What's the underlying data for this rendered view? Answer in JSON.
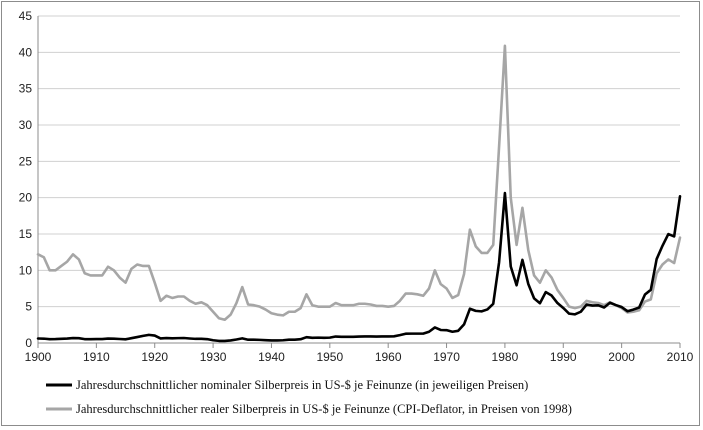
{
  "chart_data": {
    "type": "line",
    "title": "",
    "xlabel": "",
    "ylabel": "",
    "xlim": [
      1900,
      2010
    ],
    "ylim": [
      0,
      45
    ],
    "x_ticks": [
      1900,
      1910,
      1920,
      1930,
      1940,
      1950,
      1960,
      1970,
      1980,
      1990,
      2000,
      2010
    ],
    "y_ticks": [
      0,
      5,
      10,
      15,
      20,
      25,
      30,
      35,
      40,
      45
    ],
    "x_tick_labels": [
      "1900",
      "1910",
      "1920",
      "1930",
      "1940",
      "1950",
      "1960",
      "1970",
      "1980",
      "1990",
      "2000",
      "2010"
    ],
    "y_tick_labels": [
      "0",
      "5",
      "10",
      "15",
      "20",
      "25",
      "30",
      "35",
      "40",
      "45"
    ],
    "grid": "horizontal",
    "legend_position": "bottom",
    "series": [
      {
        "name": "Jahresdurchschnittlicher nominaler Silberpreis in US-$ je Feinunze (in jeweiligen Preisen)",
        "color": "#000000",
        "x": [
          1900,
          1901,
          1902,
          1903,
          1904,
          1905,
          1906,
          1907,
          1908,
          1909,
          1910,
          1911,
          1912,
          1913,
          1914,
          1915,
          1916,
          1917,
          1918,
          1919,
          1920,
          1921,
          1922,
          1923,
          1924,
          1925,
          1926,
          1927,
          1928,
          1929,
          1930,
          1931,
          1932,
          1933,
          1934,
          1935,
          1936,
          1937,
          1938,
          1939,
          1940,
          1941,
          1942,
          1943,
          1944,
          1945,
          1946,
          1947,
          1948,
          1949,
          1950,
          1951,
          1952,
          1953,
          1954,
          1955,
          1956,
          1957,
          1958,
          1959,
          1960,
          1961,
          1962,
          1963,
          1964,
          1965,
          1966,
          1967,
          1968,
          1969,
          1970,
          1971,
          1972,
          1973,
          1974,
          1975,
          1976,
          1977,
          1978,
          1979,
          1980,
          1981,
          1982,
          1983,
          1984,
          1985,
          1986,
          1987,
          1988,
          1989,
          1990,
          1991,
          1992,
          1993,
          1994,
          1995,
          1996,
          1997,
          1998,
          1999,
          2000,
          2001,
          2002,
          2003,
          2004,
          2005,
          2006,
          2007,
          2008,
          2009,
          2010
        ],
        "values": [
          0.62,
          0.6,
          0.53,
          0.54,
          0.58,
          0.61,
          0.68,
          0.66,
          0.53,
          0.52,
          0.54,
          0.54,
          0.61,
          0.6,
          0.55,
          0.51,
          0.66,
          0.82,
          0.98,
          1.12,
          1.02,
          0.63,
          0.68,
          0.65,
          0.67,
          0.69,
          0.62,
          0.57,
          0.58,
          0.53,
          0.38,
          0.29,
          0.28,
          0.35,
          0.48,
          0.64,
          0.45,
          0.45,
          0.43,
          0.39,
          0.35,
          0.35,
          0.38,
          0.45,
          0.45,
          0.52,
          0.8,
          0.72,
          0.74,
          0.72,
          0.74,
          0.89,
          0.85,
          0.85,
          0.85,
          0.89,
          0.91,
          0.91,
          0.89,
          0.91,
          0.91,
          0.92,
          1.08,
          1.28,
          1.29,
          1.29,
          1.29,
          1.55,
          2.14,
          1.79,
          1.77,
          1.55,
          1.68,
          2.56,
          4.71,
          4.42,
          4.35,
          4.62,
          5.4,
          11.09,
          20.63,
          10.52,
          7.95,
          11.44,
          8.14,
          6.14,
          5.47,
          7.01,
          6.53,
          5.5,
          4.82,
          4.04,
          3.94,
          4.3,
          5.29,
          5.15,
          5.19,
          4.89,
          5.54,
          5.22,
          4.95,
          4.37,
          4.6,
          4.88,
          6.67,
          7.32,
          11.55,
          13.38,
          14.99,
          14.67,
          20.19
        ]
      },
      {
        "name": "Jahresdurchschnittlicher realer Silberpreis in US-$ je Feinunze (CPI-Deflator, in Preisen von 1998)",
        "color": "#a6a6a6",
        "x": [
          1900,
          1901,
          1902,
          1903,
          1904,
          1905,
          1906,
          1907,
          1908,
          1909,
          1910,
          1911,
          1912,
          1913,
          1914,
          1915,
          1916,
          1917,
          1918,
          1919,
          1920,
          1921,
          1922,
          1923,
          1924,
          1925,
          1926,
          1927,
          1928,
          1929,
          1930,
          1931,
          1932,
          1933,
          1934,
          1935,
          1936,
          1937,
          1938,
          1939,
          1940,
          1941,
          1942,
          1943,
          1944,
          1945,
          1946,
          1947,
          1948,
          1949,
          1950,
          1951,
          1952,
          1953,
          1954,
          1955,
          1956,
          1957,
          1958,
          1959,
          1960,
          1961,
          1962,
          1963,
          1964,
          1965,
          1966,
          1967,
          1968,
          1969,
          1970,
          1971,
          1972,
          1973,
          1974,
          1975,
          1976,
          1977,
          1978,
          1979,
          1980,
          1981,
          1982,
          1983,
          1984,
          1985,
          1986,
          1987,
          1988,
          1989,
          1990,
          1991,
          1992,
          1993,
          1994,
          1995,
          1996,
          1997,
          1998,
          1999,
          2000,
          2001,
          2002,
          2003,
          2004,
          2005,
          2006,
          2007,
          2008,
          2009,
          2010
        ],
        "values": [
          12.2,
          11.8,
          10.0,
          10.0,
          10.6,
          11.2,
          12.2,
          11.5,
          9.6,
          9.3,
          9.3,
          9.3,
          10.5,
          10.0,
          9.0,
          8.3,
          10.2,
          10.8,
          10.6,
          10.6,
          8.3,
          5.8,
          6.5,
          6.2,
          6.4,
          6.4,
          5.8,
          5.4,
          5.6,
          5.2,
          4.3,
          3.4,
          3.2,
          3.9,
          5.5,
          7.7,
          5.3,
          5.2,
          5.0,
          4.6,
          4.1,
          3.9,
          3.8,
          4.3,
          4.3,
          4.8,
          6.7,
          5.2,
          5.0,
          5.0,
          5.0,
          5.5,
          5.2,
          5.2,
          5.2,
          5.4,
          5.4,
          5.3,
          5.1,
          5.1,
          5.0,
          5.1,
          5.8,
          6.8,
          6.8,
          6.7,
          6.5,
          7.5,
          10.0,
          8.1,
          7.5,
          6.2,
          6.6,
          9.5,
          15.6,
          13.3,
          12.4,
          12.4,
          13.5,
          27.0,
          40.9,
          20.0,
          13.5,
          18.6,
          12.8,
          9.3,
          8.3,
          10.0,
          9.0,
          7.3,
          6.2,
          5.0,
          4.8,
          5.0,
          5.8,
          5.6,
          5.5,
          5.2,
          5.6,
          5.2,
          4.8,
          4.2,
          4.3,
          4.5,
          5.7,
          6.0,
          9.6,
          10.8,
          11.5,
          11.0,
          14.5
        ]
      }
    ]
  }
}
